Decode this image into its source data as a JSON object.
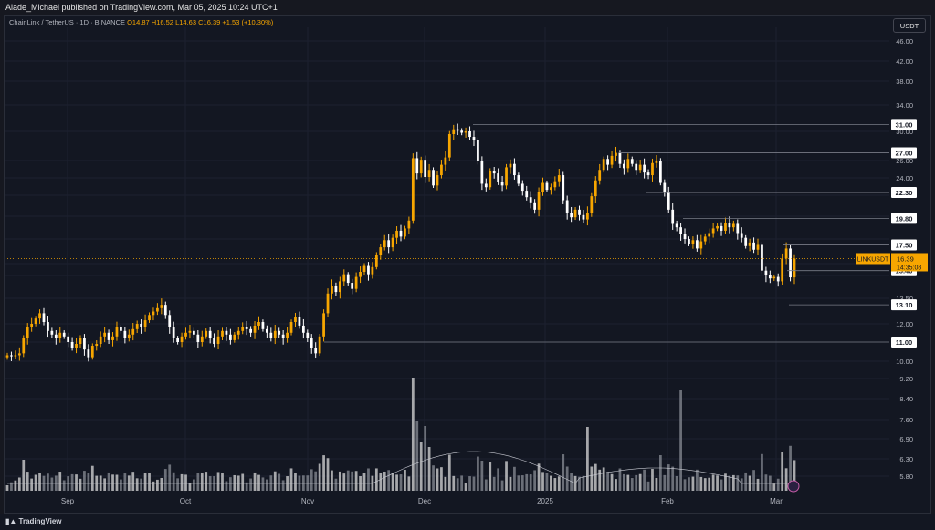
{
  "header": {
    "published_text": "Alade_Michael published on TradingView.com, Mar 05, 2025 10:24 UTC+1"
  },
  "legend": {
    "symbol_text": "ChainLink / TetherUS · 1D · BINANCE",
    "open": "O14.87",
    "high": "H16.52",
    "low": "L14.63",
    "close": "C16.39",
    "change": "+1.53 (+10.30%)"
  },
  "currency_button": "USDT",
  "footer": {
    "logo_text": "TradingView"
  },
  "colors": {
    "up": "#f7a600",
    "down": "#ffffff",
    "background": "#131722",
    "volume_up": "#d9d9d9",
    "level_line": "#787b86"
  },
  "chart_data": {
    "type": "candlestick",
    "symbol": "LINKUSDT",
    "price_axis_labels": [
      "46.00",
      "42.00",
      "38.00",
      "34.00",
      "30.00",
      "26.00",
      "24.00",
      "22.00",
      "20.00",
      "18.00",
      "16.00",
      "15.00",
      "13.50",
      "12.00",
      "11.00",
      "10.00",
      "9.20",
      "8.40",
      "7.60",
      "6.90",
      "6.30",
      "5.80"
    ],
    "price_axis_values": [
      46,
      42,
      38,
      34,
      30,
      26,
      24,
      22,
      20,
      18,
      16,
      15,
      13.5,
      12,
      11,
      10,
      9.2,
      8.4,
      7.6,
      6.9,
      6.3,
      5.8
    ],
    "time_axis_labels": [
      "Sep",
      "Oct",
      "Nov",
      "Dec",
      "2025",
      "Feb",
      "Mar"
    ],
    "levels": [
      {
        "value": 31.0,
        "label": "31.00"
      },
      {
        "value": 27.0,
        "label": "27.00"
      },
      {
        "value": 22.3,
        "label": "22.30"
      },
      {
        "value": 19.8,
        "label": "19.80"
      },
      {
        "value": 17.5,
        "label": "17.50"
      },
      {
        "value": 15.4,
        "label": "15.40"
      },
      {
        "value": 13.1,
        "label": "13.10"
      },
      {
        "value": 11.0,
        "label": "11.00"
      }
    ],
    "last_price": {
      "value": 16.39,
      "label": "16.39",
      "countdown": "14:35:08",
      "symbol_label": "LINKUSDT"
    },
    "closes": [
      10.3,
      10.25,
      10.3,
      10.4,
      11.2,
      11.8,
      12.0,
      12.3,
      12.6,
      12.1,
      11.6,
      11.4,
      11.2,
      11.5,
      11.3,
      11.0,
      10.7,
      10.9,
      11.2,
      10.6,
      10.2,
      10.8,
      10.9,
      11.3,
      11.5,
      11.1,
      11.3,
      11.8,
      11.6,
      11.2,
      11.4,
      11.7,
      12.0,
      11.8,
      12.2,
      12.5,
      12.7,
      12.9,
      13.1,
      12.5,
      11.8,
      11.2,
      11.0,
      11.3,
      11.5,
      11.6,
      11.4,
      11.0,
      11.3,
      11.6,
      11.2,
      10.9,
      11.3,
      11.6,
      11.4,
      11.1,
      11.4,
      11.6,
      11.8,
      11.7,
      11.5,
      11.9,
      12.1,
      11.7,
      11.5,
      11.2,
      11.6,
      11.4,
      11.2,
      11.5,
      12.1,
      12.4,
      11.9,
      11.5,
      11.2,
      10.7,
      10.4,
      11.3,
      12.6,
      13.8,
      14.3,
      13.9,
      14.6,
      15.1,
      14.5,
      14.1,
      14.9,
      15.3,
      15.8,
      15.1,
      15.7,
      16.7,
      17.3,
      17.9,
      17.3,
      18.1,
      18.7,
      18.2,
      18.9,
      19.6,
      26.3,
      24.5,
      26.1,
      24.1,
      24.9,
      23.1,
      24.3,
      25.5,
      26.4,
      29.6,
      30.3,
      30.1,
      29.8,
      30.0,
      29.2,
      28.7,
      26.0,
      23.3,
      22.9,
      24.8,
      24.5,
      23.5,
      23.1,
      25.2,
      25.6,
      24.3,
      23.3,
      22.5,
      21.8,
      21.3,
      20.6,
      22.4,
      23.4,
      22.6,
      22.9,
      23.6,
      24.3,
      21.5,
      20.3,
      19.9,
      20.6,
      20.1,
      19.7,
      20.3,
      21.9,
      23.7,
      24.9,
      26.2,
      25.5,
      26.6,
      27.0,
      25.6,
      25.1,
      26.2,
      25.6,
      24.9,
      25.5,
      24.6,
      24.3,
      25.7,
      26.0,
      23.4,
      22.4,
      20.6,
      19.3,
      19.0,
      18.4,
      18.0,
      17.6,
      17.9,
      17.2,
      17.8,
      18.2,
      18.5,
      18.9,
      19.1,
      18.7,
      19.4,
      19.0,
      19.3,
      18.5,
      18.1,
      17.4,
      17.7,
      17.1,
      17.5,
      15.4,
      15.0,
      14.8,
      14.9,
      14.6,
      16.4,
      17.2,
      14.87,
      16.39
    ],
    "volume_note": "volume histogram shown beneath price candles"
  }
}
